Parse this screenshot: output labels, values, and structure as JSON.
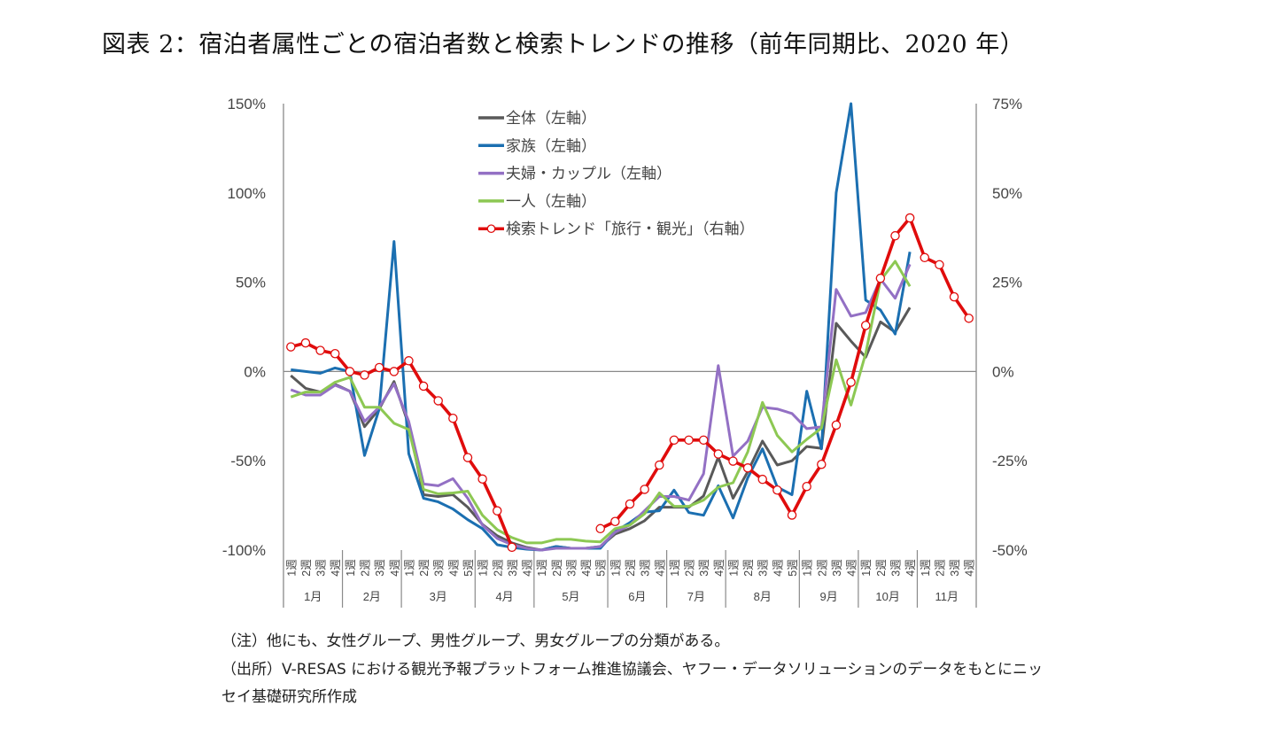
{
  "title": "図表 2：宿泊者属性ごとの宿泊者数と検索トレンドの推移（前年同期比、2020 年）",
  "notes": [
    "（注）他にも、女性グループ、男性グループ、男女グループの分類がある。",
    "（出所）V-RESAS における観光予報プラットフォーム推進協議会、ヤフー・データソリューションのデータをもとにニッ",
    "セイ基礎研究所作成"
  ],
  "chart_data": {
    "type": "line",
    "legend_position": "top-center",
    "grid": false,
    "y_left": {
      "ylim": [
        -100,
        150
      ],
      "ticks": [
        "150%",
        "100%",
        "50%",
        "0%",
        "-50%",
        "-100%"
      ],
      "tick_values": [
        150,
        100,
        50,
        0,
        -50,
        -100
      ]
    },
    "y_right": {
      "ylim": [
        -50,
        75
      ],
      "ticks": [
        "75%",
        "50%",
        "25%",
        "0%",
        "-25%",
        "-50%"
      ],
      "tick_values": [
        75,
        50,
        25,
        0,
        -25,
        -50
      ]
    },
    "months": [
      {
        "label": "1月",
        "weeks": [
          "1週",
          "2週",
          "3週",
          "4週"
        ]
      },
      {
        "label": "2月",
        "weeks": [
          "1週",
          "2週",
          "3週",
          "4週"
        ]
      },
      {
        "label": "3月",
        "weeks": [
          "1週",
          "2週",
          "3週",
          "4週",
          "5週"
        ]
      },
      {
        "label": "4月",
        "weeks": [
          "1週",
          "2週",
          "3週",
          "4週"
        ]
      },
      {
        "label": "5月",
        "weeks": [
          "1週",
          "2週",
          "3週",
          "4週",
          "5週"
        ]
      },
      {
        "label": "6月",
        "weeks": [
          "1週",
          "2週",
          "3週",
          "4週"
        ]
      },
      {
        "label": "7月",
        "weeks": [
          "1週",
          "2週",
          "3週",
          "4週"
        ]
      },
      {
        "label": "8月",
        "weeks": [
          "1週",
          "2週",
          "3週",
          "4週",
          "5週"
        ]
      },
      {
        "label": "9月",
        "weeks": [
          "1週",
          "2週",
          "3週",
          "4週"
        ]
      },
      {
        "label": "10月",
        "weeks": [
          "1週",
          "2週",
          "3週",
          "4週"
        ]
      },
      {
        "label": "11月",
        "weeks": [
          "1週",
          "2週",
          "3週",
          "4週"
        ]
      }
    ],
    "series": [
      {
        "name": "全体（左軸）",
        "axis": "left",
        "color": "#595959",
        "markers": false,
        "values": [
          -2.3,
          -9.4,
          -11.5,
          -7.2,
          -11,
          -30.9,
          -21,
          -5.6,
          -30,
          -69,
          -70,
          -69,
          -76,
          -85.6,
          -92,
          -96,
          -98.5,
          -100,
          -98,
          -99,
          -99,
          -98,
          -91,
          -88,
          -83.6,
          -76,
          -76,
          -76,
          -69.7,
          -48,
          -71,
          -56,
          -39,
          -52.4,
          -50,
          -42,
          -43,
          27,
          17,
          8,
          27.8,
          22,
          35.8,
          null,
          null,
          null,
          null
        ]
      },
      {
        "name": "家族（左軸）",
        "axis": "left",
        "color": "#1b6fb1",
        "markers": false,
        "values": [
          1,
          0,
          -1,
          2,
          0,
          -47,
          -21,
          72.8,
          -46,
          -71,
          -73,
          -77,
          -83,
          -88,
          -97,
          -98.5,
          -99.5,
          -100,
          -98,
          -99,
          -99,
          -99,
          -89.6,
          -84.6,
          -78.7,
          -78,
          -66.4,
          -79,
          -80.5,
          -64,
          -82,
          -59.5,
          -43.3,
          -64.8,
          -69,
          -11,
          -43.3,
          100,
          150,
          40,
          34.4,
          21,
          67,
          null,
          null,
          null,
          null
        ]
      },
      {
        "name": "夫婦・カップル（左軸）",
        "axis": "left",
        "color": "#9370c4",
        "markers": false,
        "values": [
          -10.2,
          -13.2,
          -13.2,
          -7.7,
          -11,
          -28,
          -20,
          -6.9,
          -28,
          -63,
          -64,
          -60,
          -71,
          -86,
          -93.5,
          -97,
          -99,
          -100,
          -99,
          -99,
          -99,
          -98,
          -90,
          -86,
          -78,
          -70,
          -70,
          -72,
          -57.3,
          3.3,
          -47.4,
          -39,
          -20,
          -21,
          -23.5,
          -32,
          -31,
          46,
          31,
          33,
          51.8,
          41,
          60,
          null,
          null,
          null,
          null
        ]
      },
      {
        "name": "一人（左軸）",
        "axis": "left",
        "color": "#8dc853",
        "markers": false,
        "values": [
          -14.3,
          -11.5,
          -11.5,
          -6,
          -3.3,
          -20,
          -20,
          -29,
          -32.5,
          -66,
          -68.5,
          -68,
          -67,
          -80.5,
          -88.6,
          -93,
          -96,
          -96,
          -94,
          -94,
          -95,
          -95.4,
          -88,
          -86,
          -79.7,
          -68,
          -75.5,
          -75.5,
          -72,
          -64.8,
          -62.3,
          -45,
          -17.3,
          -35.8,
          -45,
          -38,
          -31.7,
          6.6,
          -18.8,
          10,
          51,
          61.7,
          47.7,
          null,
          null,
          null,
          null
        ]
      },
      {
        "name": "検索トレンド「旅行・観光」（右軸）",
        "axis": "right",
        "color": "#e00c0c",
        "markers": true,
        "values": [
          6.9,
          8,
          5.9,
          5,
          0,
          -1,
          1.1,
          0,
          3,
          -4.1,
          -8.2,
          -13.1,
          -24.1,
          -30.1,
          -39,
          -49.2,
          null,
          null,
          null,
          null,
          null,
          -44,
          -42,
          -37.1,
          -33,
          -26.2,
          -19.2,
          -19.2,
          -19.2,
          -23.1,
          -25.1,
          -27,
          -30.2,
          -33.2,
          -40.2,
          -32.2,
          -26,
          -15,
          -3,
          12.9,
          26.1,
          38,
          43,
          31.9,
          29.9,
          20.9,
          14.9
        ]
      }
    ]
  }
}
